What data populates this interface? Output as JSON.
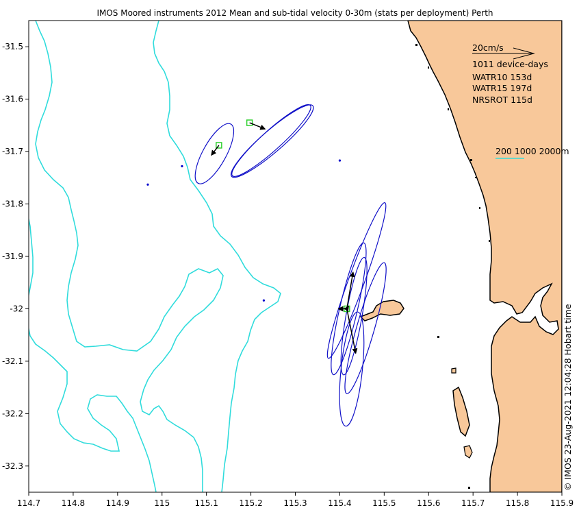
{
  "chart_data": {
    "type": "map-vector",
    "title": "IMOS Moored instruments 2012 Mean and sub-tidal velocity 0-30m (stats per deployment) Perth",
    "xlim": [
      114.7,
      115.9
    ],
    "ylim": [
      -32.35,
      -31.45
    ],
    "x_ticks": [
      114.7,
      114.8,
      114.9,
      115,
      115.1,
      115.2,
      115.3,
      115.4,
      115.5,
      115.6,
      115.7,
      115.8,
      115.9
    ],
    "x_tick_labels": [
      "114.7",
      "114.8",
      "114.9",
      "115",
      "115.1",
      "115.2",
      "115.3",
      "115.4",
      "115.5",
      "115.6",
      "115.7",
      "115.8",
      "115.9"
    ],
    "y_ticks": [
      -31.5,
      -31.6,
      -31.7,
      -31.8,
      -31.9,
      -32,
      -32.1,
      -32.2,
      -32.3
    ],
    "y_tick_labels": [
      "-31.5",
      "-31.6",
      "-31.7",
      "-31.8",
      "-31.9",
      "-32",
      "-32.1",
      "-32.2",
      "-32.3"
    ],
    "legend": {
      "scale_arrow_label": "20cm/s",
      "device_days": "1011 device-days",
      "sites": [
        "WATR15 197d",
        "WATR10 153d",
        "NRSROT 115d"
      ],
      "contour_legend": "200 1000 2000m"
    },
    "credit": "© IMOS 23-Aug-2021 12:04:28 Hobart time",
    "colors": {
      "land": "#f8c89a",
      "coastline": "#000000",
      "isobath": "#30dcdc",
      "ellipse": "#1010c8",
      "arrow": "#000000",
      "mooring_marker": "#30d030",
      "dot": "#0000cc"
    },
    "sites": [
      {
        "name": "WATR15",
        "lon": 115.128,
        "lat": -31.688,
        "arrows": [
          {
            "lon_end": 115.111,
            "lat_end": -31.707
          }
        ],
        "ellipses": [
          {
            "lon": 115.118,
            "lat": -31.704,
            "a": 0.076,
            "b": 0.026,
            "angle": 61
          }
        ]
      },
      {
        "name": "WATR10",
        "lon": 115.197,
        "lat": -31.645,
        "arrows": [
          {
            "lon_end": 115.232,
            "lat_end": -31.657
          }
        ],
        "ellipses": [
          {
            "lon": 115.248,
            "lat": -31.68,
            "a": 0.121,
            "b": 0.024,
            "angle": 41
          },
          {
            "lon": 115.246,
            "lat": -31.679,
            "a": 0.118,
            "b": 0.022,
            "angle": 42
          }
        ]
      },
      {
        "name": "NRSROT",
        "lon": 115.416,
        "lat": -32.0,
        "arrows": [
          {
            "lon_end": 115.43,
            "lat_end": -31.93
          },
          {
            "lon_end": 115.397,
            "lat_end": -32.0
          },
          {
            "lon_end": 115.42,
            "lat_end": -31.995
          },
          {
            "lon_end": 115.436,
            "lat_end": -32.085
          }
        ],
        "ellipses": [
          {
            "lon": 115.438,
            "lat": -31.946,
            "a": 0.186,
            "b": 0.018,
            "angle": 70
          },
          {
            "lon": 115.42,
            "lat": -32.0,
            "a": 0.152,
            "b": 0.02,
            "angle": 77
          },
          {
            "lon": 115.458,
            "lat": -32.037,
            "a": 0.153,
            "b": 0.02,
            "angle": 74
          },
          {
            "lon": 115.432,
            "lat": -32.014,
            "a": 0.134,
            "b": 0.018,
            "angle": 80
          },
          {
            "lon": 115.427,
            "lat": -32.115,
            "a": 0.129,
            "b": 0.024,
            "angle": 84
          }
        ]
      }
    ],
    "station_dots": [
      {
        "lon": 114.968,
        "lat": -31.763
      },
      {
        "lon": 115.045,
        "lat": -31.728
      },
      {
        "lon": 115.4,
        "lat": -31.717
      },
      {
        "lon": 115.229,
        "lat": -31.984
      }
    ]
  }
}
